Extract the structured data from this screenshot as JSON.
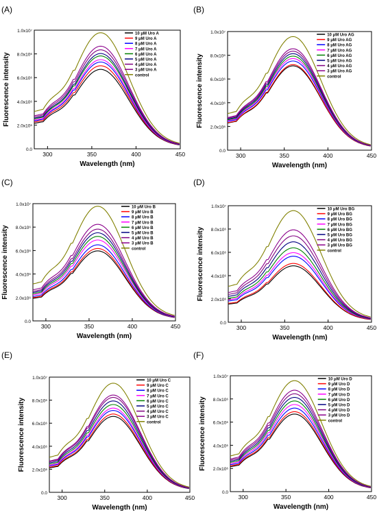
{
  "colors": [
    "#000000",
    "#ff0000",
    "#0000ff",
    "#ff00ff",
    "#008000",
    "#000080",
    "#800080",
    "#8b008b",
    "#808000"
  ],
  "chart_data": [
    {
      "panel": "(A)",
      "type": "line",
      "xlabel": "Wavelength (nm)",
      "ylabel": "Fluorescence intensity",
      "xlim": [
        285,
        450
      ],
      "ylim": [
        0,
        10000000
      ],
      "xticks": [
        "300",
        "350",
        "400",
        "450"
      ],
      "yticks": [
        "0.0",
        "2.0x10⁶",
        "4.0x10⁶",
        "6.0x10⁶",
        "8.0x10⁶",
        "1.0x10⁷"
      ],
      "legend_position": "top-right",
      "series": [
        {
          "name": "10 μM Uro A",
          "peak": 6500000
        },
        {
          "name": "9 μM Uro A",
          "peak": 6800000
        },
        {
          "name": "8 μM Uro A",
          "peak": 7100000
        },
        {
          "name": "7 μM Uro A",
          "peak": 7300000
        },
        {
          "name": "6 μM Uro A",
          "peak": 7600000
        },
        {
          "name": "5 μM Uro A",
          "peak": 7800000
        },
        {
          "name": "4 μM Uro A",
          "peak": 8100000
        },
        {
          "name": "3 μM Uro A",
          "peak": 8400000
        },
        {
          "name": "control",
          "peak": 9500000
        }
      ]
    },
    {
      "panel": "(B)",
      "type": "line",
      "xlabel": "Wavelength (nm)",
      "ylabel": "Fluorescence intensity",
      "xlim": [
        285,
        450
      ],
      "ylim": [
        0,
        10000000
      ],
      "xticks": [
        "300",
        "350",
        "400",
        "450"
      ],
      "yticks": [
        "0.0",
        "2.0x10⁶",
        "4.0x10⁶",
        "6.0x10⁶",
        "8.0x10⁶",
        "1.0x10⁷"
      ],
      "legend_position": "top-right",
      "series": [
        {
          "name": "10 μM Uro AG",
          "peak": 6900000
        },
        {
          "name": "9 μM Uro AG",
          "peak": 7000000
        },
        {
          "name": "8 μM Uro AG",
          "peak": 7300000
        },
        {
          "name": "7 μM Uro AG",
          "peak": 7500000
        },
        {
          "name": "6 μM Uro AG",
          "peak": 7700000
        },
        {
          "name": "5 μM Uro AG",
          "peak": 7900000
        },
        {
          "name": "4 μM Uro AG",
          "peak": 8100000
        },
        {
          "name": "3 μM Uro AG",
          "peak": 8300000
        },
        {
          "name": "control",
          "peak": 9300000
        }
      ]
    },
    {
      "panel": "(C)",
      "type": "line",
      "xlabel": "Wavelength (nm)",
      "ylabel": "Fluorescence intensity",
      "xlim": [
        285,
        450
      ],
      "ylim": [
        0,
        10000000
      ],
      "xticks": [
        "300",
        "350",
        "400",
        "450"
      ],
      "yticks": [
        "0.0",
        "2.0x10⁶",
        "4.0x10⁶",
        "6.0x10⁶",
        "8.0x10⁶",
        "1.0x10⁷"
      ],
      "legend_position": "top-right",
      "series": [
        {
          "name": "10 μM Uro B",
          "peak": 5800000
        },
        {
          "name": "9 μM Uro B",
          "peak": 6000000
        },
        {
          "name": "8 μM Uro B",
          "peak": 6300000
        },
        {
          "name": "7 μM Uro B",
          "peak": 6700000
        },
        {
          "name": "6 μM Uro B",
          "peak": 7000000
        },
        {
          "name": "5 μM Uro B",
          "peak": 7300000
        },
        {
          "name": "4 μM Uro B",
          "peak": 7600000
        },
        {
          "name": "3 μM Uro B",
          "peak": 8000000
        },
        {
          "name": "control",
          "peak": 9500000
        }
      ]
    },
    {
      "panel": "(D)",
      "type": "line",
      "xlabel": "Wavelength (nm)",
      "ylabel": "Fluorescence intensity",
      "xlim": [
        285,
        450
      ],
      "ylim": [
        0,
        10000000
      ],
      "xticks": [
        "300",
        "350",
        "400",
        "450"
      ],
      "yticks": [
        "0.0",
        "2.0x10⁶",
        "4.0x10⁶",
        "6.0x10⁶",
        "8.0x10⁶",
        "1.0x10⁷"
      ],
      "legend_position": "top-right",
      "series": [
        {
          "name": "10 μM Uro BG",
          "peak": 4700000
        },
        {
          "name": "9 μM Uro BG",
          "peak": 4900000
        },
        {
          "name": "8 μM Uro BG",
          "peak": 5500000
        },
        {
          "name": "7 μM Uro BG",
          "peak": 5800000
        },
        {
          "name": "6 μM Uro BG",
          "peak": 6200000
        },
        {
          "name": "5 μM Uro BG",
          "peak": 6700000
        },
        {
          "name": "4 μM Uro BG",
          "peak": 7200000
        },
        {
          "name": "3 μM Uro BG",
          "peak": 7700000
        },
        {
          "name": "control",
          "peak": 9300000
        }
      ]
    },
    {
      "panel": "(E)",
      "type": "line",
      "xlabel": "Wavelength (nm)",
      "ylabel": "Fluorescence intensity",
      "xlim": [
        285,
        450
      ],
      "ylim": [
        0,
        10000000
      ],
      "xticks": [
        "300",
        "350",
        "400",
        "450"
      ],
      "yticks": [
        "0.0",
        "2.0x10⁶",
        "4.0x10⁶",
        "6.0x10⁶",
        "8.0x10⁶",
        "1.0x10⁷"
      ],
      "legend_position": "top-right",
      "series": [
        {
          "name": "10 μM Uro C",
          "peak": 6400000
        },
        {
          "name": "9 μM Uro C",
          "peak": 6600000
        },
        {
          "name": "8 μM Uro C",
          "peak": 6900000
        },
        {
          "name": "7 μM Uro C",
          "peak": 7100000
        },
        {
          "name": "6 μM Uro C",
          "peak": 7400000
        },
        {
          "name": "5 μM Uro C",
          "peak": 7700000
        },
        {
          "name": "4 μM Uro C",
          "peak": 8000000
        },
        {
          "name": "3 μM Uro C",
          "peak": 8200000
        },
        {
          "name": "control",
          "peak": 9200000
        }
      ]
    },
    {
      "panel": "(F)",
      "type": "line",
      "xlabel": "Wavelength (nm)",
      "ylabel": "Fluorescence intensity",
      "xlim": [
        285,
        450
      ],
      "ylim": [
        0,
        10000000
      ],
      "xticks": [
        "300",
        "350",
        "400",
        "450"
      ],
      "yticks": [
        "0.0",
        "2.0x10⁶",
        "4.0x10⁶",
        "6.0x10⁶",
        "8.0x10⁶",
        "1.0x10⁷"
      ],
      "legend_position": "top-right",
      "series": [
        {
          "name": "10 μM Uro D",
          "peak": 6500000
        },
        {
          "name": "9 μM Uro D",
          "peak": 6700000
        },
        {
          "name": "8 μM Uro D",
          "peak": 7000000
        },
        {
          "name": "7 μM Uro D",
          "peak": 7300000
        },
        {
          "name": "6 μM Uro D",
          "peak": 7600000
        },
        {
          "name": "5 μM Uro D",
          "peak": 7900000
        },
        {
          "name": "4 μM Uro D",
          "peak": 8200000
        },
        {
          "name": "3 μM Uro D",
          "peak": 8500000
        },
        {
          "name": "control",
          "peak": 9300000
        }
      ]
    }
  ]
}
